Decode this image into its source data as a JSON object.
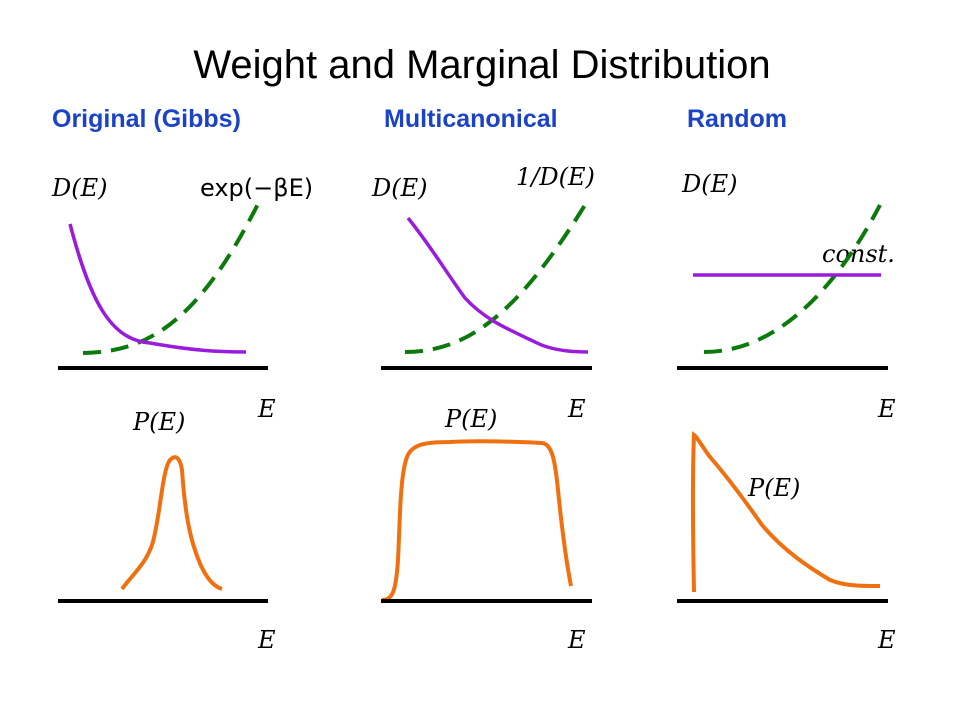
{
  "title": "Weight and Marginal Distribution",
  "columns": [
    {
      "heading": "Original (Gibbs)",
      "dos_label": "D(E)",
      "weight_label": "exp(−βE)",
      "prob_label": "P(E)",
      "top_axis_label": "E",
      "bottom_axis_label": "E"
    },
    {
      "heading": "Multicanonical",
      "dos_label": "D(E)",
      "weight_label": "1/D(E)",
      "prob_label": "P(E)",
      "top_axis_label": "E",
      "bottom_axis_label": "E"
    },
    {
      "heading": "Random",
      "dos_label": "D(E)",
      "weight_label": "const.",
      "prob_label": "P(E)",
      "top_axis_label": "E",
      "bottom_axis_label": "E"
    }
  ],
  "colors": {
    "heading": "#1a43c8",
    "density_of_states": "#9b1bdc",
    "weight": "#0a7a0a",
    "probability": "#f07010",
    "axis": "#000000"
  }
}
